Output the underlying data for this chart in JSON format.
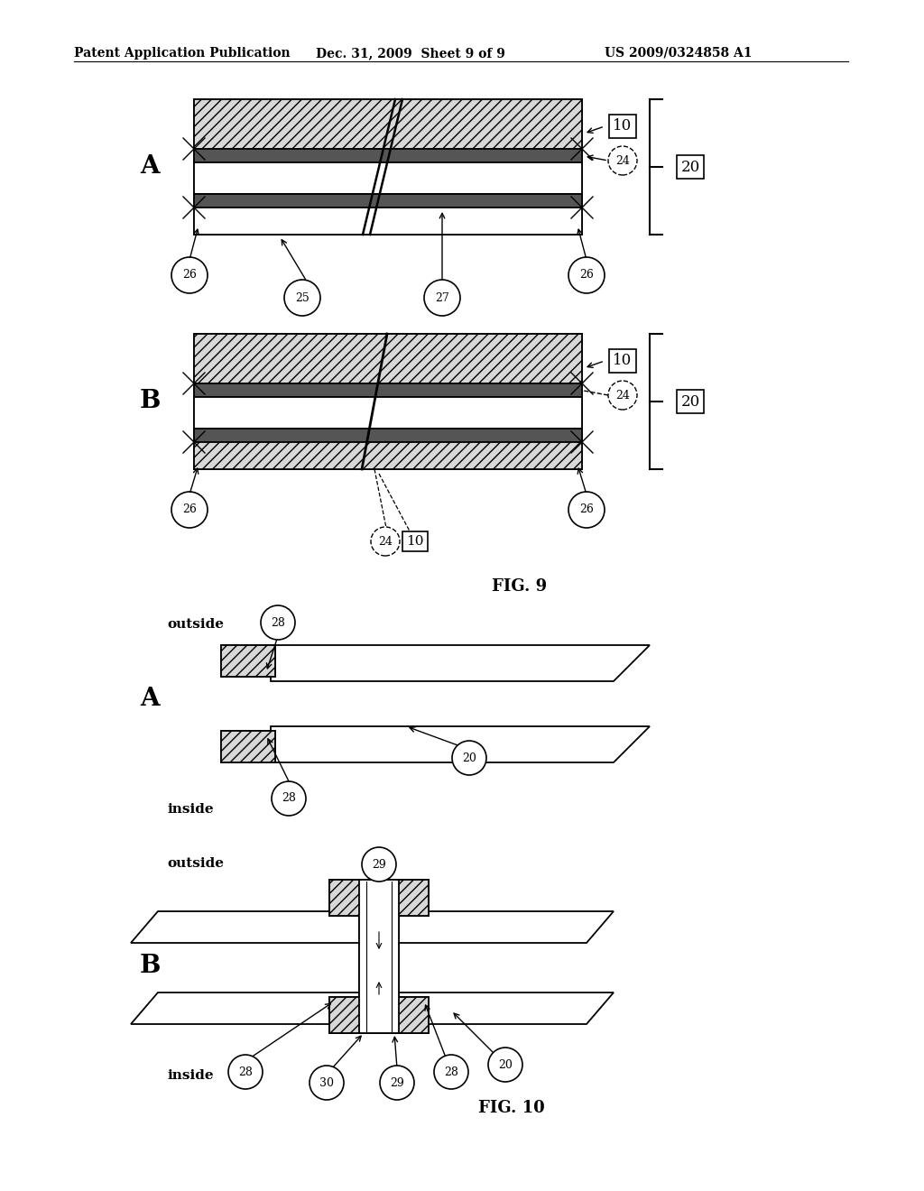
{
  "header_left": "Patent Application Publication",
  "header_mid": "Dec. 31, 2009  Sheet 9 of 9",
  "header_right": "US 2009/0324858 A1",
  "bg_color": "#ffffff",
  "line_color": "#000000",
  "fig9_label": "FIG. 9",
  "fig10_label": "FIG. 10",
  "hatch_light": "///",
  "hatch_dark": "///",
  "gray_light": "#d8d8d8",
  "gray_dark": "#555555",
  "gray_mid": "#888888"
}
